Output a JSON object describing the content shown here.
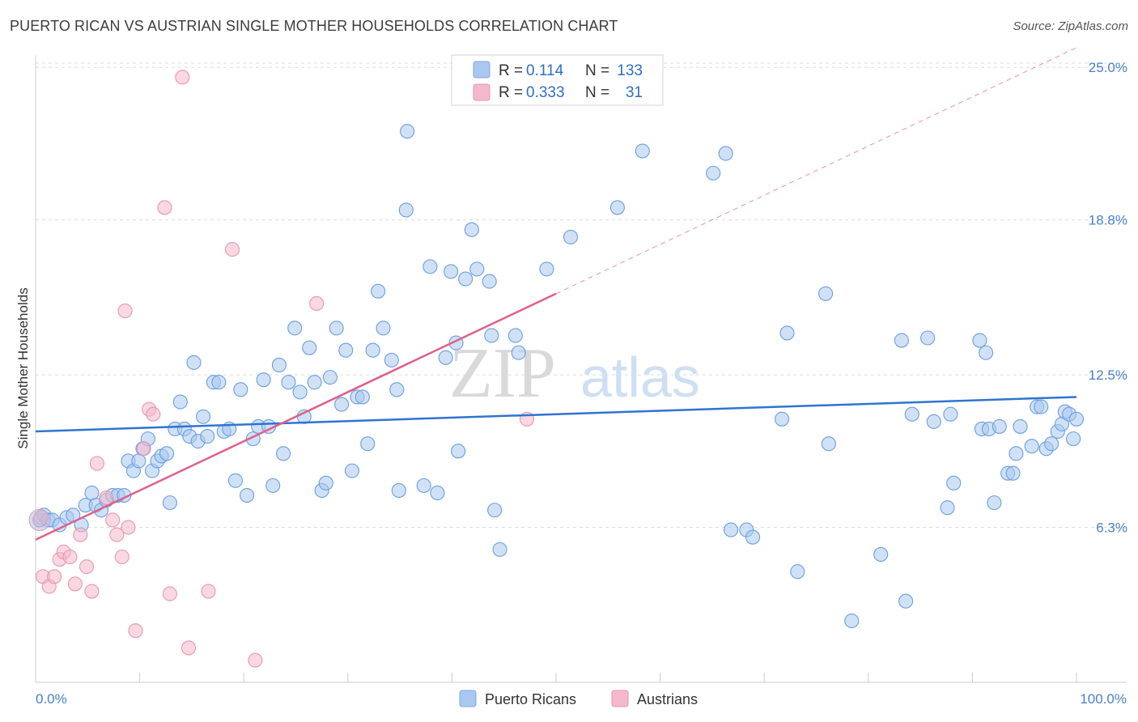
{
  "title": "PUERTO RICAN VS AUSTRIAN SINGLE MOTHER HOUSEHOLDS CORRELATION CHART",
  "source": "Source: ZipAtlas.com",
  "watermark": {
    "zip": "ZIP",
    "atlas": "atlas"
  },
  "legend": {
    "rows": [
      {
        "r_label": "R =",
        "r_value": "0.114",
        "n_label": "N =",
        "n_value": "133",
        "color": "#aac8ef"
      },
      {
        "r_label": "R =",
        "r_value": "0.333",
        "n_label": "N =",
        "n_value": "31",
        "color": "#f4b8cb"
      }
    ]
  },
  "bottom_legend": [
    {
      "label": "Puerto Ricans",
      "color": "#aac8ef"
    },
    {
      "label": "Austrians",
      "color": "#f4b8cb"
    }
  ],
  "chart_data": {
    "type": "scatter",
    "title": "PUERTO RICAN VS AUSTRIAN SINGLE MOTHER HOUSEHOLDS CORRELATION CHART",
    "xlabel": "",
    "ylabel": "Single Mother Households",
    "xlim": [
      0,
      100
    ],
    "ylim": [
      0,
      25.5
    ],
    "x_tick_labels": {
      "min": "0.0%",
      "max": "100.0%"
    },
    "y_ticks": [
      {
        "value": 6.3,
        "label": "6.3%"
      },
      {
        "value": 12.5,
        "label": "12.5%"
      },
      {
        "value": 18.8,
        "label": "18.8%"
      },
      {
        "value": 25.0,
        "label": "25.0%"
      }
    ],
    "series": [
      {
        "name": "Puerto Ricans",
        "color": "#6a9fe0",
        "fill": "#aac8ef",
        "trend": {
          "x0": 0,
          "y0": 10.2,
          "x1": 100,
          "y1": 11.6,
          "color": "#2f74d0"
        },
        "points": [
          [
            0.4,
            6.6
          ],
          [
            0.8,
            6.8
          ],
          [
            1.2,
            6.6
          ],
          [
            1.6,
            6.6
          ],
          [
            2.3,
            6.4
          ],
          [
            3,
            6.7
          ],
          [
            3.6,
            6.8
          ],
          [
            4.4,
            6.4
          ],
          [
            4.8,
            7.2
          ],
          [
            5.4,
            7.7
          ],
          [
            5.8,
            7.2
          ],
          [
            6.3,
            7.0
          ],
          [
            6.8,
            7.4
          ],
          [
            7.4,
            7.6
          ],
          [
            7.9,
            7.6
          ],
          [
            8.5,
            7.6
          ],
          [
            8.9,
            9.0
          ],
          [
            9.4,
            8.6
          ],
          [
            9.9,
            9.0
          ],
          [
            10.3,
            9.5
          ],
          [
            10.8,
            9.9
          ],
          [
            11.2,
            8.6
          ],
          [
            11.7,
            9.0
          ],
          [
            12.1,
            9.2
          ],
          [
            12.6,
            9.3
          ],
          [
            12.9,
            7.3
          ],
          [
            13.4,
            10.3
          ],
          [
            13.9,
            11.4
          ],
          [
            14.3,
            10.3
          ],
          [
            14.8,
            10.0
          ],
          [
            15.2,
            13.0
          ],
          [
            15.6,
            9.8
          ],
          [
            16.1,
            10.8
          ],
          [
            16.5,
            10.0
          ],
          [
            17.1,
            12.2
          ],
          [
            17.6,
            12.2
          ],
          [
            18.1,
            10.2
          ],
          [
            18.6,
            10.3
          ],
          [
            19.2,
            8.2
          ],
          [
            19.7,
            11.9
          ],
          [
            20.3,
            7.6
          ],
          [
            20.9,
            9.9
          ],
          [
            21.4,
            10.4
          ],
          [
            21.9,
            12.3
          ],
          [
            22.4,
            10.4
          ],
          [
            22.8,
            8.0
          ],
          [
            23.4,
            12.9
          ],
          [
            23.8,
            9.3
          ],
          [
            24.3,
            12.2
          ],
          [
            24.9,
            14.4
          ],
          [
            25.4,
            11.8
          ],
          [
            25.8,
            10.8
          ],
          [
            26.3,
            13.6
          ],
          [
            26.8,
            12.2
          ],
          [
            27.5,
            7.8
          ],
          [
            27.9,
            8.1
          ],
          [
            28.3,
            12.4
          ],
          [
            28.9,
            14.4
          ],
          [
            29.4,
            11.3
          ],
          [
            29.8,
            13.5
          ],
          [
            30.4,
            8.6
          ],
          [
            30.9,
            11.6
          ],
          [
            31.4,
            11.6
          ],
          [
            31.9,
            9.7
          ],
          [
            32.4,
            13.5
          ],
          [
            32.9,
            15.9
          ],
          [
            33.4,
            14.4
          ],
          [
            34.2,
            13.1
          ],
          [
            34.7,
            11.9
          ],
          [
            34.9,
            7.8
          ],
          [
            35.6,
            19.2
          ],
          [
            35.7,
            22.4
          ],
          [
            37.3,
            8.0
          ],
          [
            37.9,
            16.9
          ],
          [
            38.6,
            7.7
          ],
          [
            39.4,
            13.2
          ],
          [
            39.9,
            16.7
          ],
          [
            40.4,
            13.8
          ],
          [
            40.6,
            9.4
          ],
          [
            41.3,
            16.4
          ],
          [
            41.9,
            18.4
          ],
          [
            42.4,
            16.8
          ],
          [
            43.6,
            16.3
          ],
          [
            43.8,
            14.1
          ],
          [
            44.1,
            7.0
          ],
          [
            44.6,
            5.4
          ],
          [
            46.1,
            14.1
          ],
          [
            46.4,
            13.4
          ],
          [
            49.1,
            16.8
          ],
          [
            51.4,
            18.1
          ],
          [
            55.9,
            19.3
          ],
          [
            58.3,
            21.6
          ],
          [
            65.1,
            20.7
          ],
          [
            66.3,
            21.5
          ],
          [
            66.8,
            6.2
          ],
          [
            68.3,
            6.2
          ],
          [
            68.9,
            5.9
          ],
          [
            71.7,
            10.7
          ],
          [
            72.2,
            14.2
          ],
          [
            73.2,
            4.5
          ],
          [
            75.9,
            15.8
          ],
          [
            76.2,
            9.7
          ],
          [
            78.4,
            2.5
          ],
          [
            81.2,
            5.2
          ],
          [
            83.2,
            13.9
          ],
          [
            83.6,
            3.3
          ],
          [
            84.2,
            10.9
          ],
          [
            85.7,
            14.0
          ],
          [
            86.3,
            10.6
          ],
          [
            87.6,
            7.1
          ],
          [
            87.9,
            10.9
          ],
          [
            88.2,
            8.1
          ],
          [
            90.7,
            13.9
          ],
          [
            90.9,
            10.3
          ],
          [
            91.3,
            13.4
          ],
          [
            91.6,
            10.3
          ],
          [
            92.1,
            7.3
          ],
          [
            92.6,
            10.4
          ],
          [
            93.4,
            8.5
          ],
          [
            93.9,
            8.5
          ],
          [
            94.2,
            9.3
          ],
          [
            94.6,
            10.4
          ],
          [
            95.7,
            9.6
          ],
          [
            96.2,
            11.2
          ],
          [
            96.6,
            11.2
          ],
          [
            97.1,
            9.5
          ],
          [
            97.6,
            9.7
          ],
          [
            98.2,
            10.2
          ],
          [
            98.6,
            10.5
          ],
          [
            98.9,
            11.0
          ],
          [
            99.3,
            10.9
          ],
          [
            99.7,
            9.9
          ],
          [
            100,
            10.7
          ]
        ]
      },
      {
        "name": "Austrians",
        "color": "#e996b1",
        "fill": "#f4b8cb",
        "trend": {
          "x0": 0,
          "y0": 5.8,
          "x1": 50,
          "y1": 15.8,
          "color": "#e0608a"
        },
        "trend_extended": {
          "x0": 50,
          "y0": 15.8,
          "x1": 100,
          "y1": 25.8
        },
        "points": [
          [
            0.5,
            6.7
          ],
          [
            0.7,
            4.3
          ],
          [
            1.3,
            3.9
          ],
          [
            1.8,
            4.3
          ],
          [
            2.3,
            5.0
          ],
          [
            2.7,
            5.3
          ],
          [
            3.3,
            5.1
          ],
          [
            3.8,
            4.0
          ],
          [
            4.3,
            6.0
          ],
          [
            4.9,
            4.7
          ],
          [
            5.4,
            3.7
          ],
          [
            5.9,
            8.9
          ],
          [
            6.8,
            7.5
          ],
          [
            7.4,
            6.6
          ],
          [
            7.8,
            6.0
          ],
          [
            8.3,
            5.1
          ],
          [
            8.6,
            15.1
          ],
          [
            8.9,
            6.3
          ],
          [
            9.6,
            2.1
          ],
          [
            10.4,
            9.5
          ],
          [
            10.9,
            11.1
          ],
          [
            11.3,
            10.9
          ],
          [
            12.4,
            19.3
          ],
          [
            12.9,
            3.6
          ],
          [
            14.1,
            24.6
          ],
          [
            14.7,
            1.4
          ],
          [
            16.6,
            3.7
          ],
          [
            18.9,
            17.6
          ],
          [
            21.1,
            0.9
          ],
          [
            27.0,
            15.4
          ],
          [
            47.2,
            10.7
          ]
        ]
      }
    ]
  }
}
